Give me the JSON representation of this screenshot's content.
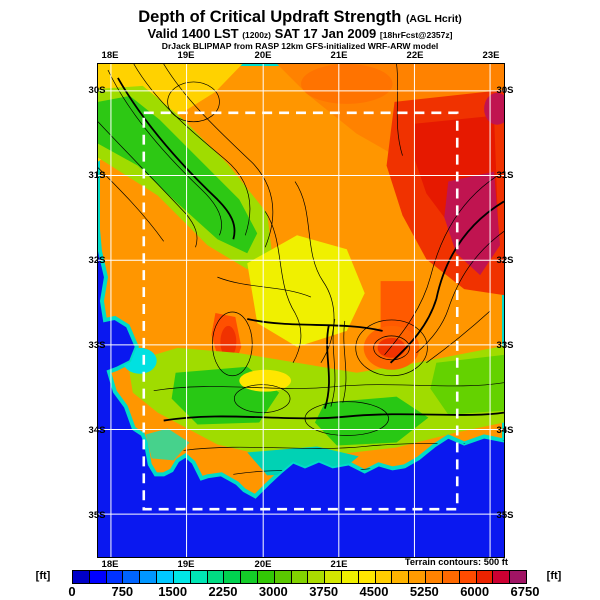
{
  "header": {
    "title": "Depth of Critical Updraft Strength",
    "title_suffix": "(AGL Hcrit)",
    "valid_main_1": "Valid 1400 LST",
    "valid_small_1": "(1200z)",
    "valid_main_2": "SAT 17 Jan 2009",
    "valid_small_2": "[18hrFcst@2357z]",
    "model_line": "DrJack BLIPMAP from RASP 12km GFS-initialized WRF-ARW model"
  },
  "map": {
    "top_labels": [
      "18E",
      "19E",
      "20E",
      "21E",
      "22E",
      "23E"
    ],
    "bottom_labels": [
      "18E",
      "19E",
      "20E",
      "21E"
    ],
    "left_labels": [
      "30S",
      "31S",
      "32S",
      "33S",
      "34S",
      "35S"
    ],
    "right_labels": [
      "30S",
      "31S",
      "32S",
      "33S",
      "34S",
      "35S"
    ],
    "terrain_note": "Terrain contours: 500 ft"
  },
  "colorbar": {
    "unit_left": "[ft]",
    "unit_right": "[ft]",
    "ticks": [
      "0",
      "750",
      "1500",
      "2250",
      "3000",
      "3750",
      "4500",
      "5250",
      "6000",
      "6750"
    ],
    "colors": [
      "#0000c8",
      "#0000ff",
      "#0032ff",
      "#0064ff",
      "#0096ff",
      "#00c8ff",
      "#00e6e6",
      "#00e6b4",
      "#00dc82",
      "#00d250",
      "#14cd28",
      "#32c805",
      "#5ac800",
      "#82d200",
      "#aadc00",
      "#d2e600",
      "#f0f000",
      "#ffe600",
      "#ffcd00",
      "#ffb400",
      "#ff9b00",
      "#ff8200",
      "#ff6900",
      "#ff4b00",
      "#eb2300",
      "#cd0032",
      "#a01464"
    ]
  },
  "chart_data": {
    "type": "heatmap",
    "title": "Depth of Critical Updraft Strength (AGL Hcrit)",
    "valid": "1400 LST (1200z) SAT 17 Jan 2009",
    "forecast_note": "18hrFcst@2357z",
    "model": "DrJack BLIPMAP from RASP 12km GFS-initialized WRF-ARW model",
    "units": "ft",
    "scale_min": 0,
    "scale_max": 6750,
    "scale_step": 250,
    "tick_values": [
      0,
      750,
      1500,
      2250,
      3000,
      3750,
      4500,
      5250,
      6000,
      6750
    ],
    "lon_labels": [
      "18E",
      "19E",
      "20E",
      "21E",
      "22E",
      "23E"
    ],
    "lat_labels": [
      "30S",
      "31S",
      "32S",
      "33S",
      "34S",
      "35S"
    ],
    "terrain_contour_interval_ft": 500,
    "legend_position": "bottom",
    "notes": "Filled contour forecast map over Western Cape, South Africa; ocean in dark blue, low updraft depth (cyan/green) along south coast, high values (red/crimson 5500-6750 ft) in the northeast interior; white lat/lon grid and white dashed model sub-domain box; black terrain contours every 500 ft."
  }
}
